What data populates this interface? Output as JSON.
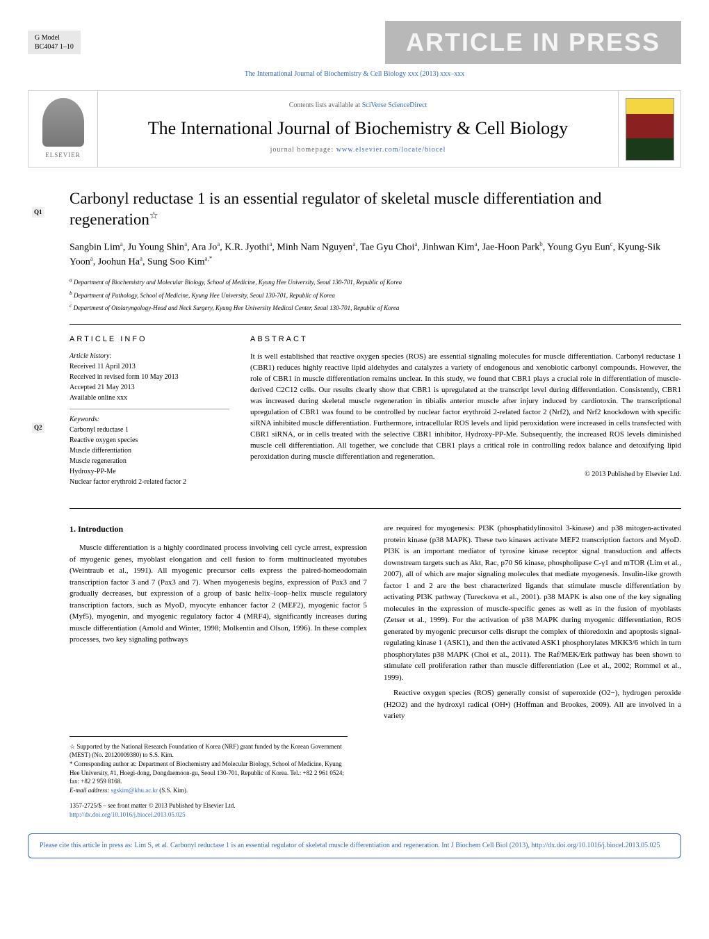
{
  "header": {
    "model_label": "G Model",
    "model_code": "BC4047 1–10",
    "in_press": "ARTICLE IN PRESS",
    "citation_line": "The International Journal of Biochemistry & Cell Biology xxx (2013) xxx–xxx"
  },
  "journal_banner": {
    "contents_prefix": "Contents lists available at ",
    "contents_link": "SciVerse ScienceDirect",
    "journal_name": "The International Journal of Biochemistry & Cell Biology",
    "homepage_prefix": "journal homepage: ",
    "homepage_link": "www.elsevier.com/locate/biocel",
    "publisher": "ELSEVIER"
  },
  "article": {
    "title": "Carbonyl reductase 1 is an essential regulator of skeletal muscle differentiation and regeneration",
    "title_star": "☆",
    "authors_html": "Sangbin Lim<sup>a</sup>, Ju Young Shin<sup>a</sup>, Ara Jo<sup>a</sup>, K.R. Jyothi<sup>a</sup>, Minh Nam Nguyen<sup>a</sup>, Tae Gyu Choi<sup>a</sup>, Jinhwan Kim<sup>a</sup>, Jae-Hoon Park<sup>b</sup>, Young Gyu Eun<sup>c</sup>, Kyung-Sik Yoon<sup>a</sup>, Joohun Ha<sup>a</sup>, Sung Soo Kim<sup>a,*</sup>",
    "affiliations": [
      "a Department of Biochemistry and Molecular Biology, School of Medicine, Kyung Hee University, Seoul 130-701, Republic of Korea",
      "b Department of Pathology, School of Medicine, Kyung Hee University, Seoul 130-701, Republic of Korea",
      "c Department of Otolaryngology-Head and Neck Surgery, Kyung Hee University Medical Center, Seoul 130-701, Republic of Korea"
    ],
    "q_markers": [
      "Q1",
      "Q2"
    ]
  },
  "article_info": {
    "heading": "ARTICLE INFO",
    "history_label": "Article history:",
    "history": [
      "Received 11 April 2013",
      "Received in revised form 10 May 2013",
      "Accepted 21 May 2013",
      "Available online xxx"
    ],
    "keywords_label": "Keywords:",
    "keywords": [
      "Carbonyl reductase 1",
      "Reactive oxygen species",
      "Muscle differentiation",
      "Muscle regeneration",
      "Hydroxy-PP-Me",
      "Nuclear factor erythroid 2-related factor 2"
    ]
  },
  "abstract": {
    "heading": "ABSTRACT",
    "text": "It is well established that reactive oxygen species (ROS) are essential signaling molecules for muscle differentiation. Carbonyl reductase 1 (CBR1) reduces highly reactive lipid aldehydes and catalyzes a variety of endogenous and xenobiotic carbonyl compounds. However, the role of CBR1 in muscle differentiation remains unclear. In this study, we found that CBR1 plays a crucial role in differentiation of muscle-derived C2C12 cells. Our results clearly show that CBR1 is upregulated at the transcript level during differentiation. Consistently, CBR1 was increased during skeletal muscle regeneration in tibialis anterior muscle after injury induced by cardiotoxin. The transcriptional upregulation of CBR1 was found to be controlled by nuclear factor erythroid 2-related factor 2 (Nrf2), and Nrf2 knockdown with specific siRNA inhibited muscle differentiation. Furthermore, intracellular ROS levels and lipid peroxidation were increased in cells transfected with CBR1 siRNA, or in cells treated with the selective CBR1 inhibitor, Hydroxy-PP-Me. Subsequently, the increased ROS levels diminished muscle cell differentiation. All together, we conclude that CBR1 plays a critical role in controlling redox balance and detoxifying lipid peroxidation during muscle differentiation and regeneration.",
    "copyright": "© 2013 Published by Elsevier Ltd."
  },
  "body": {
    "intro_heading": "1. Introduction",
    "col1": "Muscle differentiation is a highly coordinated process involving cell cycle arrest, expression of myogenic genes, myoblast elongation and cell fusion to form multinucleated myotubes (Weintraub et al., 1991). All myogenic precursor cells express the paired-homeodomain transcription factor 3 and 7 (Pax3 and 7). When myogenesis begins, expression of Pax3 and 7 gradually decreases, but expression of a group of basic helix–loop–helix muscle regulatory transcription factors, such as MyoD, myocyte enhancer factor 2 (MEF2), myogenic factor 5 (Myf5), myogenin, and myogenic regulatory factor 4 (MRF4), significantly increases during muscle differentiation (Arnold and Winter, 1998; Molkentin and Olson, 1996). In these complex processes, two key signaling pathways",
    "col2": "are required for myogenesis: PI3K (phosphatidylinositol 3-kinase) and p38 mitogen-activated protein kinase (p38 MAPK). These two kinases activate MEF2 transcription factors and MyoD. PI3K is an important mediator of tyrosine kinase receptor signal transduction and affects downstream targets such as Akt, Rac, p70 S6 kinase, phospholipase C-γ1 and mTOR (Lim et al., 2007), all of which are major signaling molecules that mediate myogenesis. Insulin-like growth factor 1 and 2 are the best characterized ligands that stimulate muscle differentiation by activating PI3K pathway (Tureckova et al., 2001). p38 MAPK is also one of the key signaling molecules in the expression of muscle-specific genes as well as in the fusion of myoblasts (Zetser et al., 1999). For the activation of p38 MAPK during myogenic differentiation, ROS generated by myogenic precursor cells disrupt the complex of thioredoxin and apoptosis signal-regulating kinase 1 (ASK1), and then the activated ASK1 phosphorylates MKK3/6 which in turn phosphorylates p38 MAPK (Choi et al., 2011). The Raf/MEK/Erk pathway has been shown to stimulate cell proliferation rather than muscle differentiation (Lee et al., 2002; Rommel et al., 1999).",
    "col2_p2": "Reactive oxygen species (ROS) generally consist of superoxide (O2−), hydrogen peroxide (H2O2) and the hydroxyl radical (OH•) (Hoffman and Brookes, 2009). All are involved in a variety"
  },
  "footnotes": {
    "star": "☆ Supported by the National Research Foundation of Korea (NRF) grant funded by the Korean Government (MEST) (No. 20120009380) to S.S. Kim.",
    "corresponding": "* Corresponding author at: Department of Biochemistry and Molecular Biology, School of Medicine, Kyung Hee University, #1, Hoegi-dong, Dongdaemoon-gu, Seoul 130-701, Republic of Korea. Tel.: +82 2 961 0524; fax: +82 2 959 8168.",
    "email_label": "E-mail address: ",
    "email": "sgskim@khu.ac.kr",
    "email_suffix": " (S.S. Kim)."
  },
  "footer": {
    "issn": "1357-2725/$ – see front matter © 2013 Published by Elsevier Ltd.",
    "doi": "http://dx.doi.org/10.1016/j.biocel.2013.05.025"
  },
  "cite_box": {
    "text": "Please cite this article in press as: Lim S, et al. Carbonyl reductase 1 is an essential regulator of skeletal muscle differentiation and regeneration. Int J Biochem Cell Biol (2013), http://dx.doi.org/10.1016/j.biocel.2013.05.025"
  },
  "colors": {
    "link": "#3366cc",
    "watermark": "rgba(200,200,200,0.25)",
    "gray_bg": "#e8e8e8",
    "press_bg": "#b8b8b8"
  }
}
